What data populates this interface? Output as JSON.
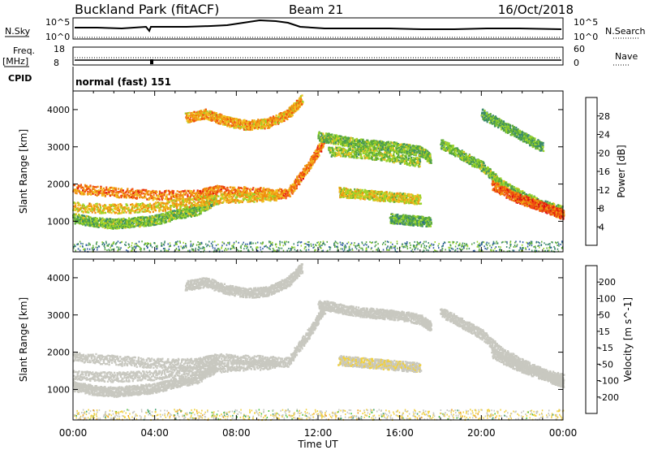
{
  "header": {
    "station": "Buckland Park (fitACF)",
    "beam": "Beam 21",
    "date": "16/Oct/2018"
  },
  "top_panels": {
    "nsky_label": "N.Sky",
    "nsky_ticks": [
      "10^5",
      "10^0"
    ],
    "nsearch_label": "N.Search",
    "nsearch_ticks": [
      "10^5",
      "10^0"
    ],
    "freq_label_1": "Freq.",
    "freq_label_2": "[MHz]",
    "freq_ticks": [
      "18",
      "8"
    ],
    "nave_label": "Nave",
    "nave_ticks": [
      "60",
      "0"
    ],
    "cpid_label": "CPID",
    "cpid_value": "normal (fast) 151"
  },
  "colors": {
    "power_scale": [
      "#1a1aff",
      "#2d5aa0",
      "#3a8a6a",
      "#5aaa3a",
      "#9ad42a",
      "#f0c020",
      "#f09010",
      "#f05010",
      "#e01010"
    ],
    "velocity_scale": [
      "#ee1111",
      "#f06010",
      "#f0a020",
      "#f0d040",
      "#c8c8c0",
      "#c8c8c0",
      "#50c040",
      "#40a070",
      "#3060a0",
      "#2030b0"
    ]
  },
  "chart_data": [
    {
      "type": "heatmap",
      "name": "power",
      "xlabel": "",
      "ylabel": "Slant Range [km]",
      "xlim": [
        0,
        24
      ],
      "ylim": [
        180,
        4500
      ],
      "yticks": [
        "1000",
        "2000",
        "3000",
        "4000"
      ],
      "colorbar_label": "Power [dB]",
      "colorbar_ticks": [
        "4",
        "8",
        "12",
        "16",
        "20",
        "24",
        "28"
      ],
      "colorbar_range": [
        0,
        32
      ],
      "traces": [
        {
          "x": [
            0,
            2,
            4,
            6,
            7,
            9,
            10.5,
            11.5,
            12.3
          ],
          "y": [
            1900,
            1800,
            1720,
            1720,
            1850,
            1800,
            1750,
            2500,
            3200
          ],
          "value": 24
        },
        {
          "x": [
            0,
            1,
            2,
            3,
            4,
            5,
            6,
            7
          ],
          "y": [
            1100,
            1000,
            950,
            1000,
            1050,
            1200,
            1300,
            1600
          ],
          "value": 14
        },
        {
          "x": [
            0,
            2,
            4,
            6,
            8,
            10
          ],
          "y": [
            1400,
            1350,
            1400,
            1550,
            1650,
            1700
          ],
          "value": 20
        },
        {
          "x": [
            5.5,
            6.5,
            7.5,
            8.5,
            9.5,
            10.5,
            11.2
          ],
          "y": [
            3800,
            3900,
            3700,
            3600,
            3650,
            3900,
            4300
          ],
          "value": 22
        },
        {
          "x": [
            12,
            13,
            14,
            15,
            16,
            17,
            17.5
          ],
          "y": [
            3300,
            3200,
            3100,
            3050,
            3000,
            2900,
            2700
          ],
          "value": 14
        },
        {
          "x": [
            12.5,
            14,
            15.5,
            17
          ],
          "y": [
            2900,
            2850,
            2750,
            2600
          ],
          "value": 15
        },
        {
          "x": [
            13,
            14,
            15,
            16,
            17
          ],
          "y": [
            1800,
            1750,
            1700,
            1650,
            1600
          ],
          "value": 18
        },
        {
          "x": [
            15.5,
            16.5,
            17.5
          ],
          "y": [
            1100,
            1050,
            1000
          ],
          "value": 12
        },
        {
          "x": [
            18,
            19,
            20,
            21,
            22,
            23,
            24
          ],
          "y": [
            3100,
            2800,
            2500,
            2000,
            1700,
            1450,
            1300
          ],
          "value": 14
        },
        {
          "x": [
            20.5,
            21.5,
            22.5,
            23.5,
            24
          ],
          "y": [
            2000,
            1700,
            1500,
            1300,
            1200
          ],
          "value": 26
        },
        {
          "x": [
            20,
            21,
            22,
            23
          ],
          "y": [
            3900,
            3600,
            3300,
            3000
          ],
          "value": 12
        }
      ]
    },
    {
      "type": "heatmap",
      "name": "velocity",
      "xlabel": "Time UT",
      "ylabel": "Slant Range [km]",
      "xlim": [
        0,
        24
      ],
      "ylim": [
        180,
        4500
      ],
      "xticks": [
        "00:00",
        "04:00",
        "08:00",
        "12:00",
        "16:00",
        "20:00",
        "00:00"
      ],
      "yticks": [
        "1000",
        "2000",
        "3000",
        "4000"
      ],
      "colorbar_label": "Velocity [m s^-1]",
      "colorbar_ticks": [
        "-200",
        "-100",
        "-50",
        "-15",
        "15",
        "50",
        "100",
        "200"
      ],
      "colorbar_range": [
        -250,
        250
      ],
      "traces": [
        {
          "x": [
            0,
            2,
            4,
            6,
            7,
            9,
            10.5,
            11.5,
            12.3
          ],
          "y": [
            1900,
            1800,
            1720,
            1720,
            1850,
            1800,
            1750,
            2500,
            3200
          ],
          "value": 0
        },
        {
          "x": [
            0,
            1,
            2,
            3,
            4,
            5,
            6,
            7
          ],
          "y": [
            1100,
            1000,
            950,
            1000,
            1050,
            1200,
            1300,
            1600
          ],
          "value": 0
        },
        {
          "x": [
            0,
            2,
            4,
            6,
            8,
            10
          ],
          "y": [
            1400,
            1350,
            1400,
            1550,
            1650,
            1700
          ],
          "value": 0
        },
        {
          "x": [
            5.5,
            6.5,
            7.5,
            8.5,
            9.5,
            10.5,
            11.2
          ],
          "y": [
            3800,
            3900,
            3700,
            3600,
            3650,
            3900,
            4300
          ],
          "value": -20
        },
        {
          "x": [
            12,
            13,
            14,
            15,
            16,
            17,
            17.5
          ],
          "y": [
            3300,
            3200,
            3100,
            3050,
            3000,
            2900,
            2700
          ],
          "value": 0
        },
        {
          "x": [
            13,
            14,
            15,
            16,
            17
          ],
          "y": [
            1800,
            1750,
            1700,
            1650,
            1600
          ],
          "value": -40
        },
        {
          "x": [
            18,
            19,
            20,
            21,
            22,
            23,
            24
          ],
          "y": [
            3100,
            2800,
            2500,
            2000,
            1700,
            1450,
            1300
          ],
          "value": 0
        },
        {
          "x": [
            20.5,
            21.5,
            22.5,
            23.5,
            24
          ],
          "y": [
            2000,
            1700,
            1500,
            1300,
            1200
          ],
          "value": 0
        }
      ]
    }
  ]
}
